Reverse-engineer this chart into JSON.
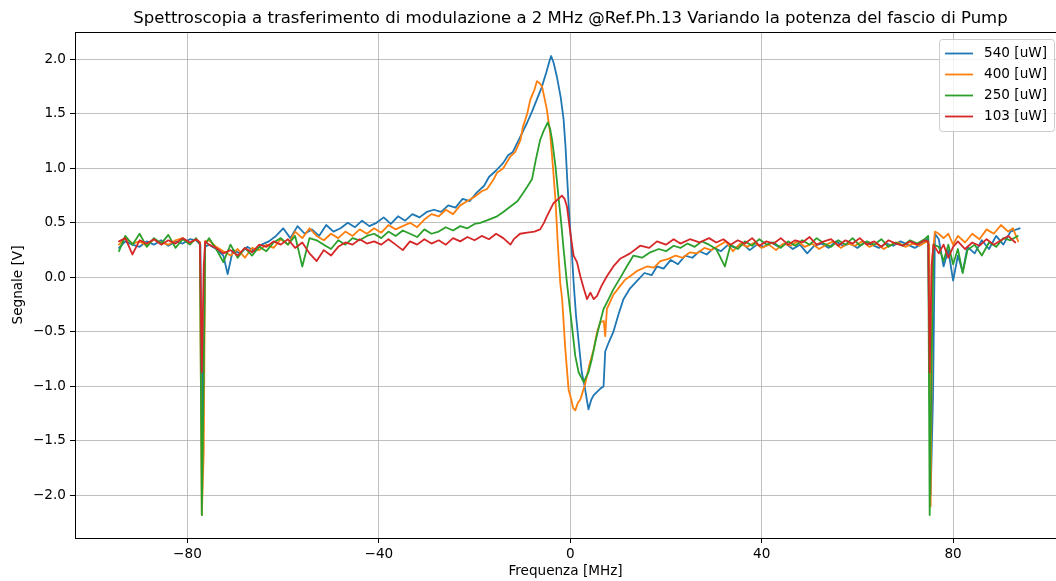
{
  "chart_data": {
    "type": "line",
    "title": "Spettroscopia a trasferimento di modulazione a 2 MHz @Ref.Ph.13 Variando la potenza del fascio di Pump",
    "xlabel": "Frequenza [MHz]",
    "ylabel": "Segnale [V]",
    "xlim": [
      -103.5,
      101.5
    ],
    "ylim": [
      -2.39,
      2.25
    ],
    "xticks": [
      {
        "value": -80,
        "label": "−80"
      },
      {
        "value": -40,
        "label": "−40"
      },
      0,
      40,
      80
    ],
    "yticks": [
      {
        "value": -2,
        "label": "−2.0"
      },
      {
        "value": -1.5,
        "label": "−1.5"
      },
      {
        "value": -1,
        "label": "−1.0"
      },
      {
        "value": -0.5,
        "label": "−0.5"
      },
      {
        "value": 0,
        "label": "0.0"
      },
      {
        "value": 0.5,
        "label": "0.5"
      },
      {
        "value": 1,
        "label": "1.0"
      },
      1.5,
      {
        "value": 2,
        "label": "2.0"
      }
    ],
    "grid": true,
    "legend": "top right",
    "marker": "none",
    "line_style": "solid",
    "series": [
      {
        "name": "540 [uW]",
        "color": "#1f77b4",
        "x": [
          -94.3,
          -93,
          -91.5,
          -90,
          -88.5,
          -87,
          -85.5,
          -84,
          -82.5,
          -81,
          -79.5,
          -78.2,
          -77.3,
          -76.8,
          -76.3,
          -75.5,
          -74,
          -72.5,
          -71.6,
          -70.5,
          -69,
          -67.5,
          -66,
          -64.5,
          -63,
          -61.5,
          -60,
          -58.5,
          -57,
          -55.5,
          -54,
          -52.5,
          -51,
          -49.5,
          -48,
          -46.5,
          -45,
          -43.5,
          -42,
          -40.5,
          -39,
          -37.5,
          -36,
          -34.5,
          -33,
          -31.5,
          -30,
          -28.5,
          -27,
          -25.5,
          -24,
          -22.5,
          -21,
          -19.5,
          -18,
          -17,
          -15.5,
          -14,
          -13,
          -12,
          -11,
          -10,
          -9,
          -8,
          -7,
          -6,
          -5,
          -4.3,
          -4,
          -3.5,
          -2.8,
          -2,
          -1.4,
          -1,
          -0.6,
          -0.2,
          0.3,
          0.7,
          1.2,
          1.7,
          2.4,
          3,
          3.8,
          4.4,
          4.9,
          5.6,
          6.3,
          6.95,
          7.3,
          8,
          9,
          10,
          11.1,
          12.5,
          14,
          15.5,
          17,
          18.1,
          19.5,
          21,
          22.5,
          24,
          25.5,
          27,
          28.5,
          30,
          31.5,
          33,
          34.5,
          36,
          37.5,
          39,
          40.5,
          42,
          43.5,
          45,
          46.5,
          48,
          49.5,
          51,
          52.5,
          54,
          55.5,
          57,
          58.5,
          60,
          61.5,
          63,
          64.5,
          66,
          67.5,
          69,
          70.5,
          72,
          73.5,
          74.8,
          75.3,
          75.8,
          76.2,
          77,
          78,
          79,
          80,
          81,
          82,
          83,
          84.5,
          86,
          87.5,
          89,
          90.5,
          92,
          93.9
        ],
        "values": [
          0.27,
          0.33,
          0.3,
          0.28,
          0.33,
          0.3,
          0.34,
          0.29,
          0.33,
          0.31,
          0.35,
          0.34,
          0.3,
          -1.55,
          0.28,
          0.3,
          0.26,
          0.2,
          0.03,
          0.25,
          0.22,
          0.28,
          0.24,
          0.3,
          0.33,
          0.38,
          0.45,
          0.36,
          0.47,
          0.4,
          0.44,
          0.38,
          0.48,
          0.42,
          0.45,
          0.5,
          0.46,
          0.52,
          0.47,
          0.5,
          0.55,
          0.49,
          0.56,
          0.52,
          0.58,
          0.55,
          0.6,
          0.62,
          0.6,
          0.66,
          0.64,
          0.72,
          0.7,
          0.78,
          0.84,
          0.92,
          0.98,
          1.05,
          1.12,
          1.15,
          1.24,
          1.33,
          1.42,
          1.52,
          1.63,
          1.74,
          1.88,
          1.99,
          2.03,
          1.97,
          1.84,
          1.65,
          1.45,
          1.2,
          0.87,
          0.55,
          0.25,
          -0.05,
          -0.35,
          -0.57,
          -0.87,
          -1.0,
          -1.21,
          -1.12,
          -1.08,
          -1.05,
          -1.02,
          -1.0,
          -0.68,
          -0.6,
          -0.5,
          -0.35,
          -0.2,
          -0.1,
          -0.03,
          0.04,
          0.02,
          0.1,
          0.08,
          0.16,
          0.12,
          0.2,
          0.18,
          0.24,
          0.21,
          0.27,
          0.24,
          0.3,
          0.27,
          0.31,
          0.25,
          0.3,
          0.28,
          0.32,
          0.28,
          0.31,
          0.26,
          0.3,
          0.22,
          0.29,
          0.31,
          0.27,
          0.33,
          0.29,
          0.31,
          0.27,
          0.32,
          0.3,
          0.27,
          0.31,
          0.29,
          0.33,
          0.3,
          0.27,
          0.31,
          0.36,
          -2.0,
          -1.09,
          0.4,
          0.35,
          0.1,
          0.25,
          -0.03,
          0.2,
          0.05,
          0.28,
          0.22,
          0.34,
          0.26,
          0.38,
          0.3,
          0.42,
          0.45
        ]
      },
      {
        "name": "400 [uW]",
        "color": "#ff7f0e",
        "x": [
          -94.3,
          -93,
          -91.5,
          -90,
          -88.5,
          -87,
          -85.5,
          -84,
          -82.5,
          -81,
          -79.5,
          -78.2,
          -77.4,
          -77,
          -76.6,
          -76.3,
          -75.5,
          -74,
          -72.5,
          -71,
          -69.5,
          -68,
          -66.5,
          -65,
          -63.5,
          -62,
          -60.5,
          -59,
          -57.5,
          -56,
          -54.5,
          -53,
          -51.5,
          -50,
          -48.5,
          -47,
          -45.5,
          -44,
          -42.5,
          -41,
          -39.5,
          -38,
          -36.5,
          -35,
          -33.5,
          -32,
          -30.5,
          -29,
          -27.5,
          -26,
          -24.5,
          -23,
          -21.5,
          -20,
          -18.5,
          -17.4,
          -16,
          -15.3,
          -14,
          -12.5,
          -11.5,
          -10.4,
          -9.9,
          -9,
          -8.35,
          -7.5,
          -6.95,
          -6.4,
          -5.9,
          -4.9,
          -4.2,
          -3.6,
          -3.1,
          -2.6,
          -2.1,
          -1.7,
          -1.04,
          -0.35,
          0.2,
          0.6,
          1.04,
          1.6,
          2.1,
          2.6,
          3.1,
          4,
          4.9,
          5.6,
          6.3,
          7,
          7.3,
          7.65,
          9,
          10.4,
          11.5,
          12.5,
          14,
          16,
          17.5,
          18.8,
          20.5,
          22,
          23.5,
          25,
          26.5,
          28,
          29.5,
          31,
          32.5,
          34,
          35.5,
          37,
          38.5,
          40,
          41.5,
          43,
          44.5,
          46,
          47.5,
          49,
          50.5,
          52,
          53.5,
          55,
          56.5,
          58,
          59.5,
          61,
          62.5,
          64,
          65.5,
          67,
          68.5,
          70,
          71.5,
          73,
          74.5,
          75,
          75.3,
          75.7,
          76.2,
          77,
          78,
          79,
          80,
          81,
          82.5,
          84,
          85.5,
          87,
          88.5,
          90,
          91.5,
          92.5,
          93.6
        ],
        "values": [
          0.3,
          0.36,
          0.31,
          0.33,
          0.29,
          0.35,
          0.32,
          0.3,
          0.34,
          0.36,
          0.31,
          0.35,
          0.32,
          -2.18,
          -1.6,
          0.33,
          0.34,
          0.28,
          0.24,
          0.2,
          0.26,
          0.18,
          0.27,
          0.25,
          0.3,
          0.27,
          0.35,
          0.3,
          0.42,
          0.36,
          0.45,
          0.38,
          0.34,
          0.4,
          0.36,
          0.42,
          0.38,
          0.44,
          0.4,
          0.45,
          0.41,
          0.48,
          0.44,
          0.47,
          0.5,
          0.46,
          0.53,
          0.58,
          0.56,
          0.62,
          0.58,
          0.66,
          0.7,
          0.74,
          0.79,
          0.81,
          0.9,
          0.96,
          1.0,
          1.11,
          1.15,
          1.26,
          1.38,
          1.5,
          1.63,
          1.72,
          1.8,
          1.78,
          1.75,
          1.54,
          1.32,
          1.0,
          0.71,
          0.3,
          -0.05,
          -0.2,
          -0.66,
          -1.03,
          -1.12,
          -1.2,
          -1.22,
          -1.15,
          -1.12,
          -1.05,
          -0.98,
          -0.8,
          -0.66,
          -0.5,
          -0.41,
          -0.4,
          -0.54,
          -0.29,
          -0.16,
          -0.08,
          -0.02,
          0.01,
          0.06,
          0.1,
          0.09,
          0.15,
          0.17,
          0.2,
          0.18,
          0.23,
          0.22,
          0.27,
          0.25,
          0.29,
          0.33,
          0.24,
          0.31,
          0.28,
          0.32,
          0.27,
          0.3,
          0.25,
          0.31,
          0.29,
          0.33,
          0.28,
          0.31,
          0.26,
          0.3,
          0.33,
          0.27,
          0.31,
          0.29,
          0.33,
          0.28,
          0.31,
          0.26,
          0.3,
          0.32,
          0.28,
          0.31,
          0.29,
          0.33,
          0.3,
          -2.1,
          0.2,
          0.42,
          0.4,
          0.36,
          0.4,
          0.3,
          0.38,
          0.32,
          0.4,
          0.35,
          0.44,
          0.4,
          0.48,
          0.42,
          0.45,
          0.33
        ]
      },
      {
        "name": "250 [uW]",
        "color": "#2ca02c",
        "x": [
          -94.3,
          -93,
          -91.5,
          -90,
          -88.5,
          -87,
          -85.5,
          -84,
          -82.5,
          -81,
          -79.5,
          -78.2,
          -77.4,
          -77,
          -76.6,
          -76.3,
          -75.5,
          -74,
          -72.5,
          -71,
          -69.5,
          -68,
          -66.5,
          -65,
          -63.5,
          -62,
          -60.5,
          -59,
          -57.5,
          -56,
          -54.5,
          -53,
          -51.5,
          -50,
          -48.5,
          -47,
          -45.5,
          -44,
          -42.5,
          -41,
          -39.5,
          -38,
          -36.5,
          -35,
          -33.5,
          -32,
          -30.5,
          -29,
          -27.5,
          -26,
          -24.5,
          -23,
          -21.5,
          -20,
          -18.8,
          -17,
          -15.3,
          -14,
          -12.5,
          -11,
          -9.75,
          -9,
          -8,
          -7.2,
          -6.3,
          -5.5,
          -4.7,
          -4.2,
          -3.8,
          -3.1,
          -2.4,
          -1.9,
          -1.4,
          -0.7,
          0.35,
          1.04,
          1.74,
          2.8,
          3.8,
          4.5,
          5.2,
          6,
          6.95,
          8,
          9,
          10.5,
          11.8,
          13.2,
          15,
          16.7,
          18.5,
          20,
          21.6,
          23,
          24.5,
          26,
          27.5,
          29,
          30.5,
          32.3,
          33.5,
          35,
          36.5,
          38,
          39.5,
          41,
          42.5,
          44,
          45.5,
          47,
          48.5,
          50,
          51.5,
          53,
          54.5,
          56,
          57.5,
          59,
          60.5,
          62,
          63.5,
          65,
          66.5,
          68,
          69.5,
          71,
          72.5,
          74,
          74.8,
          75.1,
          75.5,
          75.9,
          77,
          78,
          79,
          80,
          81,
          82,
          83,
          84.5,
          86,
          87.5,
          89,
          90.5,
          92,
          93.5
        ],
        "values": [
          0.24,
          0.38,
          0.3,
          0.4,
          0.28,
          0.36,
          0.31,
          0.39,
          0.27,
          0.35,
          0.3,
          0.36,
          0.3,
          -2.18,
          -0.9,
          0.3,
          0.36,
          0.26,
          0.14,
          0.3,
          0.18,
          0.27,
          0.2,
          0.28,
          0.24,
          0.32,
          0.36,
          0.3,
          0.38,
          0.1,
          0.36,
          0.34,
          0.3,
          0.26,
          0.34,
          0.3,
          0.36,
          0.34,
          0.38,
          0.4,
          0.36,
          0.42,
          0.38,
          0.43,
          0.4,
          0.37,
          0.44,
          0.4,
          0.42,
          0.46,
          0.43,
          0.47,
          0.45,
          0.49,
          0.5,
          0.53,
          0.56,
          0.6,
          0.65,
          0.7,
          0.78,
          0.83,
          0.9,
          1.08,
          1.26,
          1.35,
          1.42,
          1.36,
          1.26,
          1.02,
          0.71,
          0.5,
          0.26,
          -0.05,
          -0.45,
          -0.72,
          -0.87,
          -0.96,
          -0.87,
          -0.75,
          -0.6,
          -0.45,
          -0.29,
          -0.2,
          -0.11,
          0.0,
          0.1,
          0.2,
          0.18,
          0.23,
          0.26,
          0.24,
          0.29,
          0.27,
          0.31,
          0.28,
          0.33,
          0.3,
          0.26,
          0.1,
          0.3,
          0.26,
          0.33,
          0.29,
          0.35,
          0.3,
          0.32,
          0.27,
          0.33,
          0.29,
          0.34,
          0.3,
          0.36,
          0.31,
          0.28,
          0.34,
          0.3,
          0.36,
          0.29,
          0.33,
          0.3,
          0.35,
          0.28,
          0.32,
          0.29,
          0.34,
          0.31,
          0.35,
          0.38,
          -2.18,
          -0.8,
          0.3,
          0.28,
          0.15,
          0.3,
          0.12,
          0.26,
          0.04,
          0.25,
          0.3,
          0.2,
          0.32,
          0.28,
          0.36,
          0.34,
          0.38
        ]
      },
      {
        "name": "103 [uW]",
        "color": "#d62728",
        "x": [
          -94.3,
          -93,
          -91.5,
          -90,
          -88.5,
          -87,
          -85.5,
          -84,
          -82.5,
          -81,
          -79.5,
          -78.2,
          -77.4,
          -77,
          -76.6,
          -76.3,
          -75.5,
          -74,
          -72.5,
          -71,
          -69.5,
          -68,
          -66.5,
          -65,
          -63.5,
          -62,
          -60.5,
          -59,
          -57.5,
          -56,
          -54.5,
          -53,
          -51.5,
          -50,
          -48.5,
          -47,
          -45.5,
          -44,
          -42.5,
          -41,
          -39.5,
          -38,
          -36.5,
          -35,
          -33.5,
          -32,
          -30.5,
          -29,
          -27.5,
          -26,
          -24.5,
          -23,
          -21.5,
          -20,
          -18.5,
          -17,
          -15.5,
          -14,
          -12.5,
          -11.8,
          -10.5,
          -9,
          -7.5,
          -6.3,
          -5.5,
          -4.9,
          -3.5,
          -2.5,
          -1.74,
          -1.2,
          -0.7,
          0,
          0.7,
          1.4,
          2.1,
          2.8,
          3.5,
          4.2,
          4.9,
          5.6,
          6.5,
          7.65,
          9,
          10.4,
          12.5,
          14.6,
          16.5,
          18.1,
          20,
          21.6,
          23,
          25,
          27,
          29,
          30.5,
          32,
          33.5,
          35,
          36.5,
          38,
          39.5,
          41,
          42.5,
          44,
          45.5,
          47,
          48.5,
          50,
          51.5,
          53,
          54.5,
          56,
          57.5,
          59,
          60.5,
          62,
          63.5,
          65,
          66.5,
          68,
          69.5,
          71,
          72.5,
          74,
          74.8,
          75.1,
          75.5,
          75.9,
          77,
          78,
          79,
          80,
          81,
          82.5,
          84,
          85.5,
          87,
          88.5,
          90,
          91.5,
          93
        ],
        "values": [
          0.33,
          0.36,
          0.21,
          0.34,
          0.31,
          0.35,
          0.3,
          0.34,
          0.31,
          0.36,
          0.32,
          0.35,
          0.32,
          -0.87,
          0.1,
          0.33,
          0.3,
          0.27,
          0.22,
          0.25,
          0.2,
          0.27,
          0.23,
          0.3,
          0.28,
          0.33,
          0.3,
          0.35,
          0.27,
          0.32,
          0.22,
          0.15,
          0.25,
          0.2,
          0.28,
          0.32,
          0.3,
          0.35,
          0.31,
          0.33,
          0.3,
          0.35,
          0.3,
          0.25,
          0.33,
          0.3,
          0.35,
          0.31,
          0.34,
          0.3,
          0.36,
          0.33,
          0.37,
          0.34,
          0.38,
          0.35,
          0.4,
          0.36,
          0.3,
          0.35,
          0.4,
          0.41,
          0.42,
          0.44,
          0.5,
          0.56,
          0.68,
          0.72,
          0.75,
          0.72,
          0.65,
          0.41,
          0.2,
          0.14,
          0.01,
          -0.1,
          -0.2,
          -0.14,
          -0.2,
          -0.17,
          -0.08,
          0.01,
          0.1,
          0.17,
          0.22,
          0.29,
          0.27,
          0.33,
          0.3,
          0.35,
          0.31,
          0.35,
          0.32,
          0.36,
          0.32,
          0.35,
          0.3,
          0.34,
          0.31,
          0.36,
          0.29,
          0.33,
          0.31,
          0.36,
          0.3,
          0.34,
          0.32,
          0.37,
          0.3,
          0.33,
          0.35,
          0.29,
          0.34,
          0.31,
          0.36,
          0.3,
          0.33,
          0.28,
          0.34,
          0.31,
          0.29,
          0.33,
          0.3,
          0.34,
          0.33,
          -0.87,
          0.1,
          0.3,
          0.22,
          0.3,
          0.18,
          0.28,
          0.33,
          0.26,
          0.32,
          0.29,
          0.35,
          0.3,
          0.34,
          0.38,
          0.32
        ]
      }
    ]
  }
}
